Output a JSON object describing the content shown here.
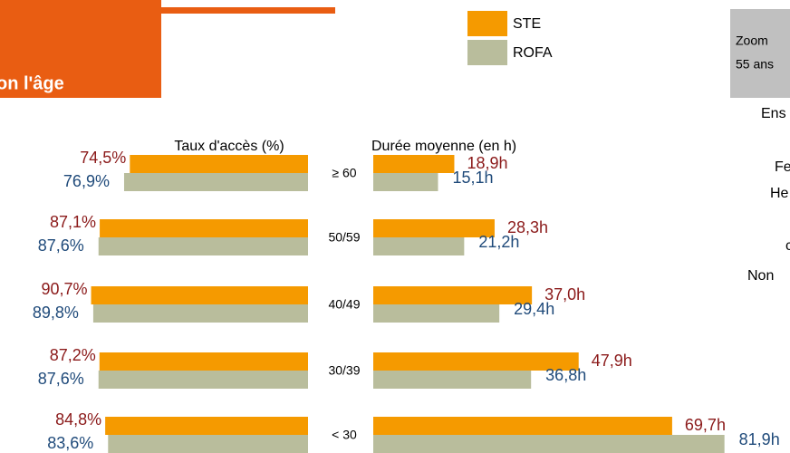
{
  "header": {
    "title": "on l'âge"
  },
  "side_panel": {
    "lines": [
      "Zoom",
      "55 ans"
    ]
  },
  "side_labels": [
    "Ens",
    "Fe",
    "He",
    "c",
    "Non"
  ],
  "chart_data": [
    {
      "type": "hbar",
      "title": "Taux d'accès (%)",
      "direction": "left",
      "categories": [
        "≥ 60",
        "50/59",
        "40/49",
        "30/39",
        "< 30"
      ],
      "xlim": [
        0,
        100
      ],
      "series": [
        {
          "name": "STE",
          "color": "#f59a00",
          "label_color": "#8b1a1a",
          "values": [
            74.5,
            87.1,
            90.7,
            87.2,
            84.8
          ],
          "value_labels": [
            "74,5%",
            "87,1%",
            "90,7%",
            "87,2%",
            "84,8%"
          ]
        },
        {
          "name": "ROFA",
          "color": "#b9bd9c",
          "label_color": "#1f4a7a",
          "values": [
            76.9,
            87.6,
            89.8,
            87.6,
            83.6
          ],
          "value_labels": [
            "76,9%",
            "87,6%",
            "89,8%",
            "87,6%",
            "83,6%"
          ]
        }
      ]
    },
    {
      "type": "hbar",
      "title": "Durée moyenne (en h)",
      "direction": "right",
      "xlim": [
        0,
        90
      ],
      "series": [
        {
          "color": "#f59a00",
          "label_color": "#8b1a1a",
          "values": [
            18.9,
            28.3,
            37.0,
            47.9,
            69.7
          ],
          "value_labels": [
            "18,9h",
            "28,3h",
            "37,0h",
            "47,9h",
            "69,7h"
          ]
        },
        {
          "color": "#b9bd9c",
          "label_color": "#1f4a7a",
          "values": [
            15.1,
            21.2,
            29.4,
            36.8,
            81.9
          ],
          "value_labels": [
            "15,1h",
            "21,2h",
            "29,4h",
            "36,8h",
            "81,9h"
          ]
        }
      ]
    }
  ]
}
